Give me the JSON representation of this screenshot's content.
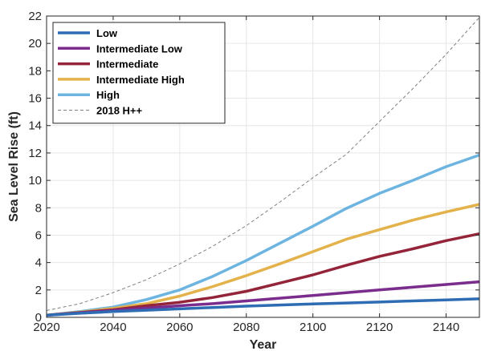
{
  "chart_data": {
    "type": "line",
    "title": "",
    "xlabel": "Year",
    "ylabel": "Sea Level Rise (ft)",
    "xlim": [
      2020,
      2150
    ],
    "ylim": [
      0,
      22
    ],
    "xticks": [
      2020,
      2040,
      2060,
      2080,
      2100,
      2120,
      2140
    ],
    "yticks": [
      0,
      2,
      4,
      6,
      8,
      10,
      12,
      14,
      16,
      18,
      20,
      22
    ],
    "grid": true,
    "legend_position": "top-left",
    "x": [
      2020,
      2030,
      2040,
      2050,
      2060,
      2070,
      2080,
      2090,
      2100,
      2110,
      2120,
      2130,
      2140,
      2150
    ],
    "series": [
      {
        "name": "Low",
        "color": "#2e6db4",
        "style": "solid",
        "values": [
          0.15,
          0.3,
          0.42,
          0.52,
          0.62,
          0.72,
          0.82,
          0.9,
          0.98,
          1.05,
          1.12,
          1.2,
          1.27,
          1.35
        ]
      },
      {
        "name": "Intermediate Low",
        "color": "#7b2d8e",
        "style": "solid",
        "values": [
          0.15,
          0.33,
          0.5,
          0.67,
          0.85,
          1.0,
          1.2,
          1.4,
          1.6,
          1.8,
          2.0,
          2.2,
          2.4,
          2.6
        ]
      },
      {
        "name": "Intermediate",
        "color": "#94243a",
        "style": "solid",
        "values": [
          0.15,
          0.35,
          0.55,
          0.85,
          1.1,
          1.45,
          1.9,
          2.5,
          3.1,
          3.8,
          4.45,
          5.0,
          5.6,
          6.1
        ]
      },
      {
        "name": "Intermediate High",
        "color": "#e4b24b",
        "style": "solid",
        "values": [
          0.15,
          0.38,
          0.65,
          1.0,
          1.55,
          2.25,
          3.05,
          3.9,
          4.8,
          5.7,
          6.4,
          7.1,
          7.7,
          8.25
        ]
      },
      {
        "name": "High",
        "color": "#6db5e0",
        "style": "solid",
        "values": [
          0.15,
          0.42,
          0.75,
          1.3,
          2.0,
          3.0,
          4.15,
          5.4,
          6.65,
          7.95,
          9.05,
          10.0,
          11.0,
          11.85
        ]
      },
      {
        "name": "2018 H++",
        "color": "#808080",
        "style": "dashed",
        "values": [
          0.5,
          1.0,
          1.8,
          2.75,
          3.9,
          5.2,
          6.7,
          8.4,
          10.2,
          11.9,
          14.3,
          16.7,
          19.2,
          21.9
        ]
      }
    ]
  }
}
